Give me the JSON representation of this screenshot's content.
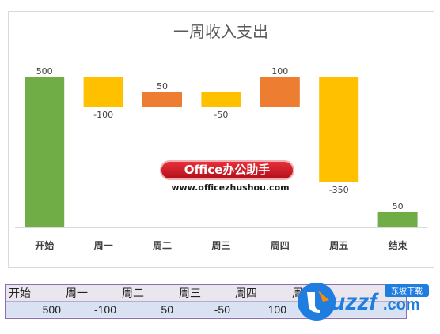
{
  "chart_data": {
    "type": "waterfall",
    "title": "一周收入支出",
    "categories": [
      "开始",
      "周一",
      "周二",
      "周三",
      "周四",
      "周五",
      "结束"
    ],
    "values": [
      500,
      -100,
      50,
      -50,
      100,
      -350,
      50
    ],
    "labels": [
      "500",
      "-100",
      "50",
      "-50",
      "100",
      "-350",
      "50"
    ],
    "colors": [
      "#70ad47",
      "#ffc000",
      "#ed7d31",
      "#ffc000",
      "#ed7d31",
      "#ffc000",
      "#70ad47"
    ],
    "ylim": [
      0,
      550
    ],
    "grid": false,
    "legend": "none"
  },
  "watermark": {
    "badge_text": "Office办公助手",
    "url_text": "www.officezhushou.com"
  },
  "sheet": {
    "header_cells": [
      "开始",
      "周一",
      "周二",
      "周三",
      "周四",
      "周"
    ],
    "value_cells": [
      "500",
      "-100",
      "50",
      "-50",
      "100"
    ]
  },
  "site_logo": {
    "main_text": "uzzf",
    "suffix_text": ".com",
    "tag_text": "东坡下载"
  }
}
